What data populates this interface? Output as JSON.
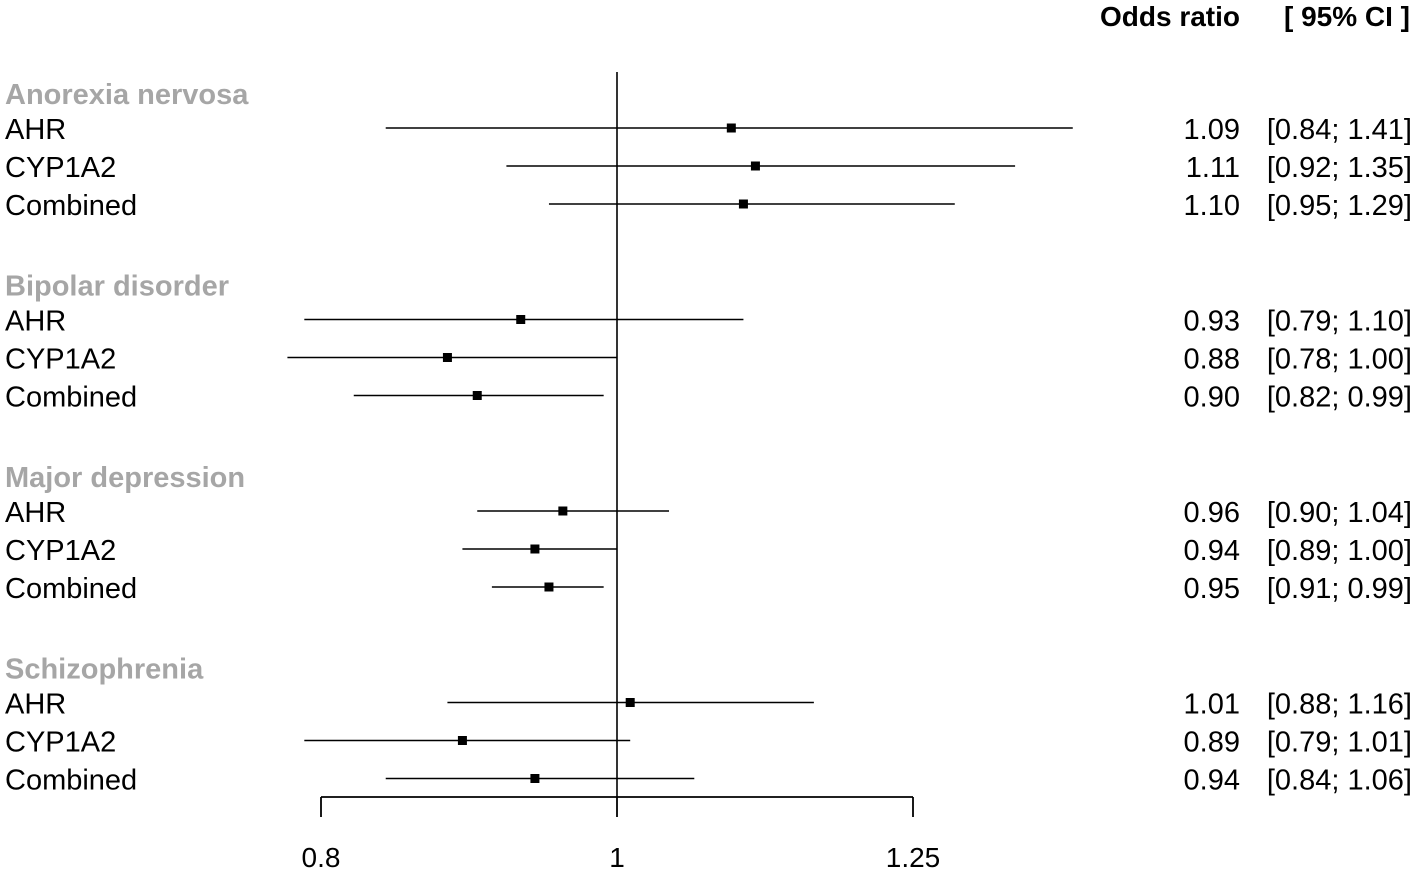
{
  "chart_data": {
    "type": "forest",
    "header": {
      "estimate": "Odds ratio",
      "ci": "[ 95% CI ]"
    },
    "scale": "log",
    "xlim": [
      0.8,
      1.25
    ],
    "ticks": [
      0.8,
      1,
      1.25
    ],
    "tick_labels": [
      "0.8",
      "1",
      "1.25"
    ],
    "reference_line": 1,
    "groups": [
      {
        "name": "Anorexia nervosa",
        "rows": [
          {
            "label": "AHR",
            "or": 1.09,
            "lower": 0.84,
            "upper": 1.41,
            "text": "1.09",
            "ci_text": "[0.84; 1.41]"
          },
          {
            "label": "CYP1A2",
            "or": 1.11,
            "lower": 0.92,
            "upper": 1.35,
            "text": "1.11",
            "ci_text": "[0.92; 1.35]"
          },
          {
            "label": "Combined",
            "or": 1.1,
            "lower": 0.95,
            "upper": 1.29,
            "text": "1.10",
            "ci_text": "[0.95; 1.29]"
          }
        ]
      },
      {
        "name": "Bipolar disorder",
        "rows": [
          {
            "label": "AHR",
            "or": 0.93,
            "lower": 0.79,
            "upper": 1.1,
            "text": "0.93",
            "ci_text": "[0.79; 1.10]"
          },
          {
            "label": "CYP1A2",
            "or": 0.88,
            "lower": 0.78,
            "upper": 1.0,
            "text": "0.88",
            "ci_text": "[0.78; 1.00]"
          },
          {
            "label": "Combined",
            "or": 0.9,
            "lower": 0.82,
            "upper": 0.99,
            "text": "0.90",
            "ci_text": "[0.82; 0.99]"
          }
        ]
      },
      {
        "name": "Major depression",
        "rows": [
          {
            "label": "AHR",
            "or": 0.96,
            "lower": 0.9,
            "upper": 1.04,
            "text": "0.96",
            "ci_text": "[0.90; 1.04]"
          },
          {
            "label": "CYP1A2",
            "or": 0.94,
            "lower": 0.89,
            "upper": 1.0,
            "text": "0.94",
            "ci_text": "[0.89; 1.00]"
          },
          {
            "label": "Combined",
            "or": 0.95,
            "lower": 0.91,
            "upper": 0.99,
            "text": "0.95",
            "ci_text": "[0.91; 0.99]"
          }
        ]
      },
      {
        "name": "Schizophrenia",
        "rows": [
          {
            "label": "AHR",
            "or": 1.01,
            "lower": 0.88,
            "upper": 1.16,
            "text": "1.01",
            "ci_text": "[0.88; 1.16]"
          },
          {
            "label": "CYP1A2",
            "or": 0.89,
            "lower": 0.79,
            "upper": 1.01,
            "text": "0.89",
            "ci_text": "[0.79; 1.01]"
          },
          {
            "label": "Combined",
            "or": 0.94,
            "lower": 0.84,
            "upper": 1.06,
            "text": "0.94",
            "ci_text": "[0.84; 1.06]"
          }
        ]
      }
    ]
  }
}
